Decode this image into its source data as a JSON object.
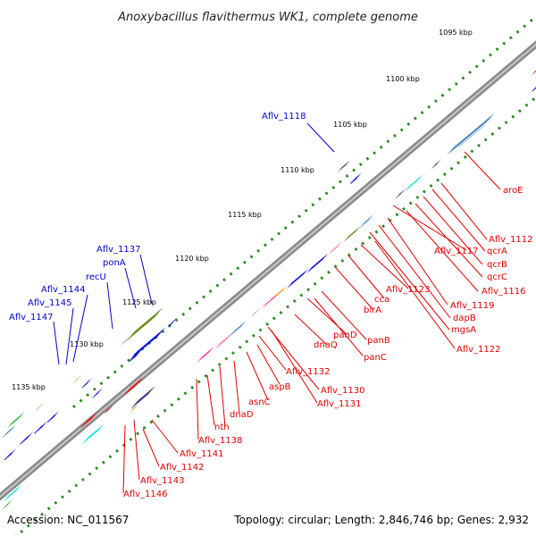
{
  "title": "Anoxybacillus flavithermus WK1, complete genome",
  "footer": {
    "accession": "Accession: NC_011567",
    "summary": "Topology: circular; Length: 2,846,746 bp; Genes: 2,932"
  },
  "scale_labels": [
    "1095 kbp",
    "1100 kbp",
    "1105 kbp",
    "1110 kbp",
    "1115 kbp",
    "1120 kbp",
    "1125 kbp",
    "1130 kbp",
    "1135 kbp"
  ],
  "colors": {
    "backbone": "#8a8a8a",
    "plus_strand_label": "#0000cc",
    "minus_strand_label": "#e00000",
    "gene_red": "#ee1111",
    "gene_blue": "#0b10d8",
    "tick_green": "#2a8a1f"
  },
  "gene_labels_plus": [
    "Aflv_1118",
    "Aflv_1137",
    "ponA",
    "recU",
    "Aflv_1144",
    "Aflv_1145",
    "Aflv_1147"
  ],
  "gene_labels_minus": [
    "aroE",
    "Aflv_1112",
    "qcrA",
    "Aflv_1117",
    "qcrB",
    "qcrC",
    "Aflv_1116",
    "Aflv_1123",
    "cca",
    "Aflv_1119",
    "birA",
    "dapB",
    "mgsA",
    "panD",
    "panB",
    "Aflv_1122",
    "dnaQ",
    "panC",
    "Aflv_1132",
    "aspB",
    "Aflv_1130",
    "asnC",
    "Aflv_1131",
    "dnaD",
    "nth",
    "Aflv_1138",
    "Aflv_1141",
    "Aflv_1142",
    "Aflv_1143",
    "Aflv_1146"
  ]
}
